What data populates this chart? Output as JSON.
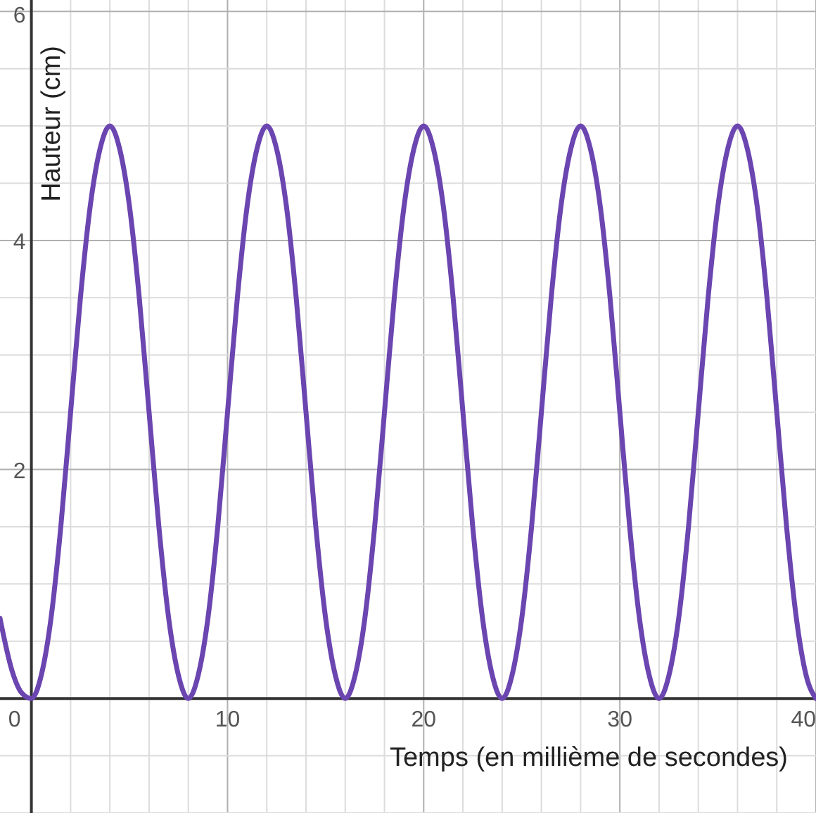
{
  "chart_data": {
    "type": "line",
    "xlabel": "Temps (en millième de secondes)",
    "ylabel": "Hauteur (cm)",
    "x": [
      -1.6,
      -1,
      -0.5,
      0,
      0.5,
      1,
      1.5,
      2,
      2.5,
      3,
      3.5,
      4,
      4.5,
      5,
      5.5,
      6,
      6.5,
      7,
      7.5,
      8,
      8.5,
      9,
      9.5,
      10,
      10.5,
      11,
      11.5,
      12,
      12.5,
      13,
      13.5,
      14,
      14.5,
      15,
      15.5,
      16,
      16.5,
      17,
      17.5,
      18,
      18.5,
      19,
      19.5,
      20,
      20.5,
      21,
      21.5,
      22,
      22.5,
      23,
      23.5,
      24,
      24.5,
      25,
      25.5,
      26,
      26.5,
      27,
      27.5,
      28,
      28.5,
      29,
      29.5,
      30,
      30.5,
      31,
      31.5,
      32,
      32.5,
      33,
      33.5,
      34,
      34.5,
      35,
      35.5,
      36,
      36.5,
      37,
      37.5,
      38,
      38.5,
      39,
      39.5,
      40
    ],
    "series": [
      {
        "color": "#6b45b0",
        "values": [
          0.7,
          0.25,
          0.05,
          0,
          0.2,
          0.7,
          1.5,
          2.5,
          3.5,
          4.3,
          4.8,
          5,
          4.8,
          4.3,
          3.5,
          2.5,
          1.5,
          0.7,
          0.2,
          0,
          0.2,
          0.7,
          1.5,
          2.5,
          3.5,
          4.3,
          4.8,
          5,
          4.8,
          4.3,
          3.5,
          2.5,
          1.5,
          0.7,
          0.2,
          0,
          0.2,
          0.7,
          1.5,
          2.5,
          3.5,
          4.3,
          4.8,
          5,
          4.8,
          4.3,
          3.5,
          2.5,
          1.5,
          0.7,
          0.2,
          0,
          0.2,
          0.7,
          1.5,
          2.5,
          3.5,
          4.3,
          4.8,
          5,
          4.8,
          4.3,
          3.5,
          2.5,
          1.5,
          0.7,
          0.2,
          0,
          0.2,
          0.7,
          1.5,
          2.5,
          3.5,
          4.3,
          4.8,
          5,
          4.8,
          4.3,
          3.5,
          2.5,
          1.5,
          0.7,
          0.2,
          0
        ]
      }
    ],
    "xlim": [
      -1.6,
      40
    ],
    "ylim": [
      -1,
      6.1
    ],
    "xticks": [
      0,
      {
        "value": 2,
        "label": null
      },
      {
        "value": 4,
        "label": null
      },
      {
        "value": 6,
        "label": null
      },
      {
        "value": 8,
        "label": null
      },
      10,
      {
        "value": 12,
        "label": null
      },
      {
        "value": 14,
        "label": null
      },
      {
        "value": 16,
        "label": null
      },
      {
        "value": 18,
        "label": null
      },
      20,
      {
        "value": 22,
        "label": null
      },
      {
        "value": 24,
        "label": null
      },
      {
        "value": 26,
        "label": null
      },
      {
        "value": 28,
        "label": null
      },
      30,
      {
        "value": 32,
        "label": null
      },
      {
        "value": 34,
        "label": null
      },
      {
        "value": 36,
        "label": null
      },
      {
        "value": 38,
        "label": null
      },
      40
    ],
    "yticks": [
      {
        "value": -1,
        "label": null
      },
      {
        "value": -0.5,
        "label": null
      },
      {
        "value": 0,
        "label": null
      },
      {
        "value": 0.5,
        "label": null
      },
      {
        "value": 1,
        "label": null
      },
      {
        "value": 1.5,
        "label": null
      },
      2,
      {
        "value": 2.5,
        "label": null
      },
      {
        "value": 3,
        "label": null
      },
      {
        "value": 3.5,
        "label": null
      },
      4,
      {
        "value": 4.5,
        "label": null
      },
      {
        "value": 5,
        "label": null
      },
      {
        "value": 5.5,
        "label": null
      },
      6
    ],
    "grid": true,
    "marker": "none",
    "line_style": "solid"
  }
}
